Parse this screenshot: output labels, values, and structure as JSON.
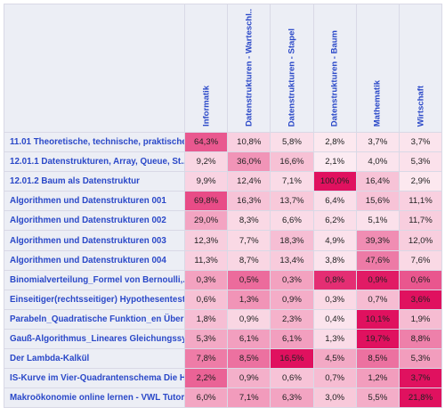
{
  "columns": [
    "Informatik",
    "Datenstrukturen - Warteschl...",
    "Datenstrukturen - Stapel",
    "Datenstrukturen - Baum",
    "Mathematik",
    "Wirtschaft"
  ],
  "rows": [
    {
      "label": "11.01 Theoretische, technische, praktische,...",
      "values": [
        "64,3%",
        "10,8%",
        "5,8%",
        "2,8%",
        "3,7%",
        "3,7%"
      ],
      "levels": [
        0.64,
        0.11,
        0.06,
        0.03,
        0.04,
        0.04
      ]
    },
    {
      "label": "12.01.1 Datenstrukturen, Array, Queue, St...",
      "values": [
        "9,2%",
        "36,0%",
        "16,6%",
        "2,1%",
        "4,0%",
        "5,3%"
      ],
      "levels": [
        0.09,
        0.36,
        0.17,
        0.02,
        0.04,
        0.05
      ]
    },
    {
      "label": "12.01.2 Baum als Datenstruktur",
      "values": [
        "9,9%",
        "12,4%",
        "7,1%",
        "100,0%",
        "16,4%",
        "2,9%"
      ],
      "levels": [
        0.1,
        0.12,
        0.07,
        1.0,
        0.16,
        0.03
      ]
    },
    {
      "label": "Algorithmen und Datenstrukturen 001",
      "values": [
        "69,8%",
        "16,3%",
        "13,7%",
        "6,4%",
        "15,6%",
        "11,1%"
      ],
      "levels": [
        0.7,
        0.16,
        0.14,
        0.06,
        0.16,
        0.11
      ]
    },
    {
      "label": "Algorithmen und Datenstrukturen 002",
      "values": [
        "29,0%",
        "8,3%",
        "6,6%",
        "6,2%",
        "5,1%",
        "11,7%"
      ],
      "levels": [
        0.29,
        0.08,
        0.07,
        0.06,
        0.05,
        0.12
      ]
    },
    {
      "label": "Algorithmen und Datenstrukturen 003",
      "values": [
        "12,3%",
        "7,7%",
        "18,3%",
        "4,9%",
        "39,3%",
        "12,0%"
      ],
      "levels": [
        0.12,
        0.08,
        0.18,
        0.05,
        0.39,
        0.12
      ]
    },
    {
      "label": "Algorithmen und Datenstrukturen 004",
      "values": [
        "11,3%",
        "8,7%",
        "13,4%",
        "3,8%",
        "47,6%",
        "7,6%"
      ],
      "levels": [
        0.11,
        0.09,
        0.13,
        0.04,
        0.48,
        0.08
      ]
    },
    {
      "label": "Binomialverteilung_Formel von Bernoulli,...",
      "values": [
        "0,3%",
        "0,5%",
        "0,3%",
        "0,8%",
        "0,9%",
        "0,6%"
      ],
      "levels": [
        0.3,
        0.55,
        0.3,
        0.85,
        0.95,
        0.65
      ]
    },
    {
      "label": "Einseitiger(rechtsseitiger) Hypothesentest_...",
      "values": [
        "0,6%",
        "1,3%",
        "0,9%",
        "0,3%",
        "0,7%",
        "3,6%"
      ],
      "levels": [
        0.17,
        0.36,
        0.25,
        0.08,
        0.19,
        1.0
      ]
    },
    {
      "label": "Parabeln_Quadratische Funktion_en Übers...",
      "values": [
        "1,8%",
        "0,9%",
        "2,3%",
        "0,4%",
        "10,1%",
        "1,9%"
      ],
      "levels": [
        0.18,
        0.09,
        0.23,
        0.04,
        1.0,
        0.19
      ]
    },
    {
      "label": "Gauß-Algorithmus_Lineares Gleichungssyst...",
      "values": [
        "5,3%",
        "6,1%",
        "6,1%",
        "1,3%",
        "19,7%",
        "8,8%"
      ],
      "levels": [
        0.27,
        0.31,
        0.31,
        0.07,
        1.0,
        0.45
      ]
    },
    {
      "label": "Der Lambda-Kalkül",
      "values": [
        "7,8%",
        "8,5%",
        "16,5%",
        "4,5%",
        "8,5%",
        "5,3%"
      ],
      "levels": [
        0.47,
        0.52,
        1.0,
        0.27,
        0.52,
        0.32
      ]
    },
    {
      "label": "IS-Kurve im Vier-Quadrantenschema Die H...",
      "values": [
        "2,2%",
        "0,9%",
        "0,6%",
        "0,7%",
        "1,2%",
        "3,7%"
      ],
      "levels": [
        0.59,
        0.24,
        0.16,
        0.19,
        0.32,
        1.0
      ]
    },
    {
      "label": "Makroökonomie online lernen - VWL Tutor...",
      "values": [
        "6,0%",
        "7,1%",
        "6,3%",
        "3,0%",
        "5,5%",
        "21,8%"
      ],
      "levels": [
        0.28,
        0.33,
        0.29,
        0.14,
        0.25,
        1.0
      ]
    }
  ],
  "colors": {
    "low": "#fdf3f7",
    "high": "#e0115f",
    "header_text": "#2a48c8",
    "header_bg": "#eceef5"
  }
}
